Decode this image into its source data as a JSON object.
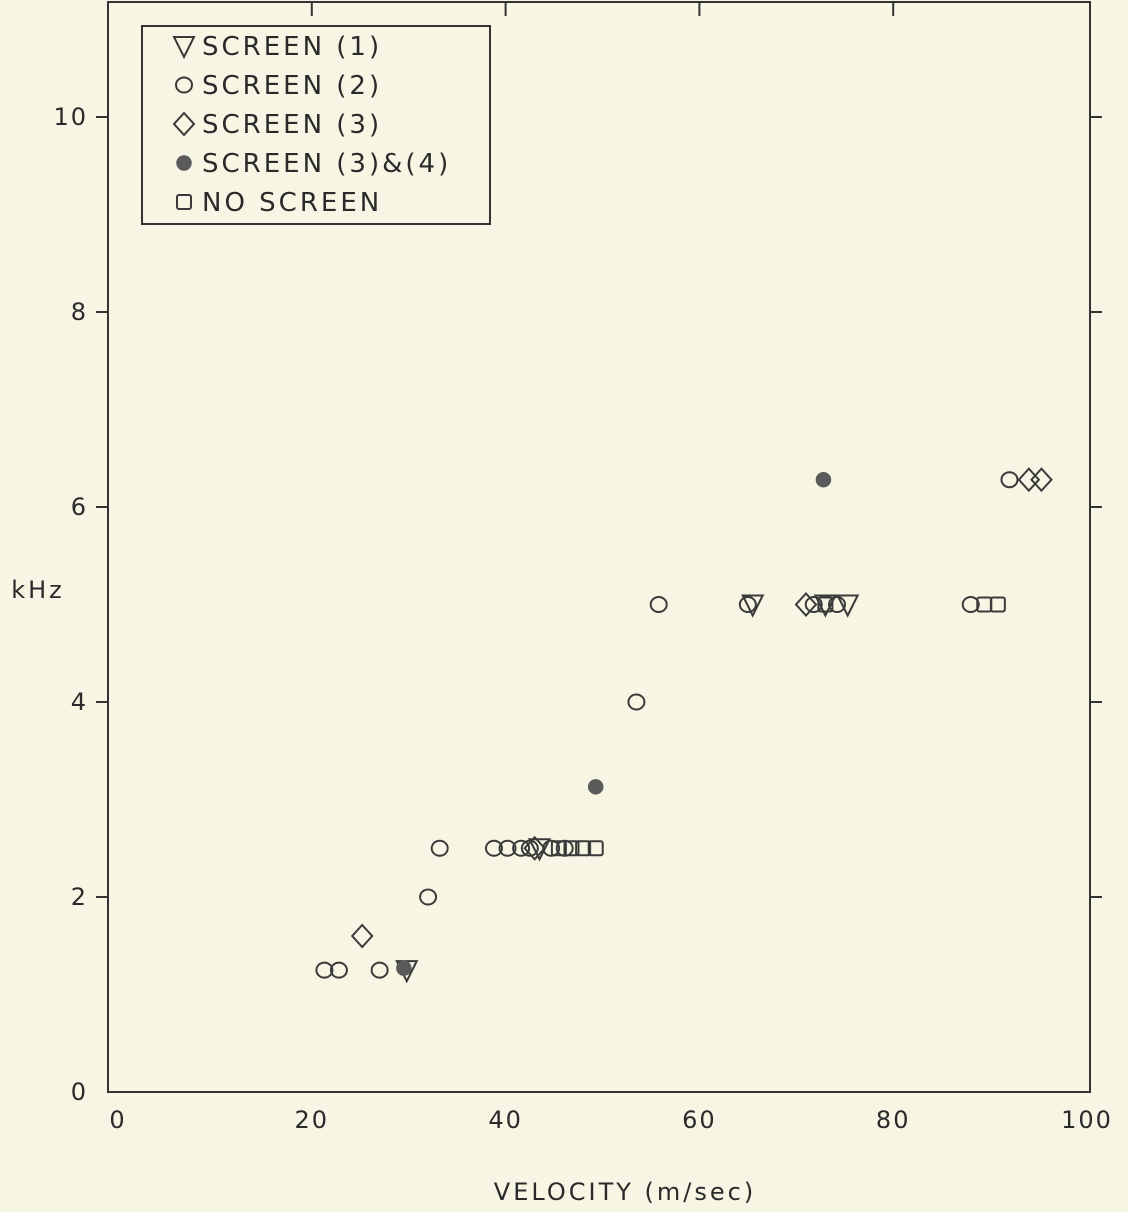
{
  "chart_data": {
    "type": "scatter",
    "title": "",
    "xlabel": "VELOCITY (m/sec)",
    "ylabel": "kHz",
    "xlim": [
      0,
      100
    ],
    "ylim": [
      0,
      11
    ],
    "xticks": [
      "0",
      "20",
      "40",
      "60",
      "80",
      "100"
    ],
    "yticks": [
      "0",
      "2",
      "4",
      "6",
      "8",
      "10"
    ],
    "grid": false,
    "legend_position": "top-left",
    "colors": {
      "ink": "#3a3a3a",
      "filled": "#5a5a5a",
      "background": "#f7f5e4"
    },
    "series": [
      {
        "name": "SCREEN (1)",
        "marker": "triangle-down",
        "x": [
          29.8,
          43.5,
          65.5,
          73,
          75.3
        ],
        "y": [
          1.25,
          2.5,
          5.0,
          5.0,
          5.0
        ]
      },
      {
        "name": "SCREEN (2)",
        "marker": "circle",
        "x": [
          21.3,
          22.8,
          27.0,
          32.0,
          33.2,
          38.8,
          40.2,
          41.6,
          42.5,
          44.7,
          46.1,
          53.5,
          55.8,
          65.0,
          71.8,
          74.2,
          88.0,
          92.0
        ],
        "y": [
          1.25,
          1.25,
          1.25,
          2.0,
          2.5,
          2.5,
          2.5,
          2.5,
          2.5,
          2.5,
          2.5,
          4.0,
          5.0,
          5.0,
          5.0,
          5.0,
          5.0,
          6.28
        ]
      },
      {
        "name": "SCREEN (3)",
        "marker": "diamond",
        "x": [
          25.2,
          43.0,
          71.0,
          94.0,
          95.3
        ],
        "y": [
          1.6,
          2.5,
          5.0,
          6.28,
          6.28
        ]
      },
      {
        "name": "SCREEN (3)&(4)",
        "marker": "filled-circle",
        "x": [
          29.5,
          49.3,
          72.8
        ],
        "y": [
          1.27,
          3.13,
          6.28
        ]
      },
      {
        "name": "NO SCREEN",
        "marker": "square",
        "x": [
          45.5,
          46.8,
          48.0,
          49.3,
          73.0,
          89.4,
          90.8
        ],
        "y": [
          2.5,
          2.5,
          2.5,
          2.5,
          5.0,
          5.0,
          5.0
        ]
      }
    ]
  }
}
